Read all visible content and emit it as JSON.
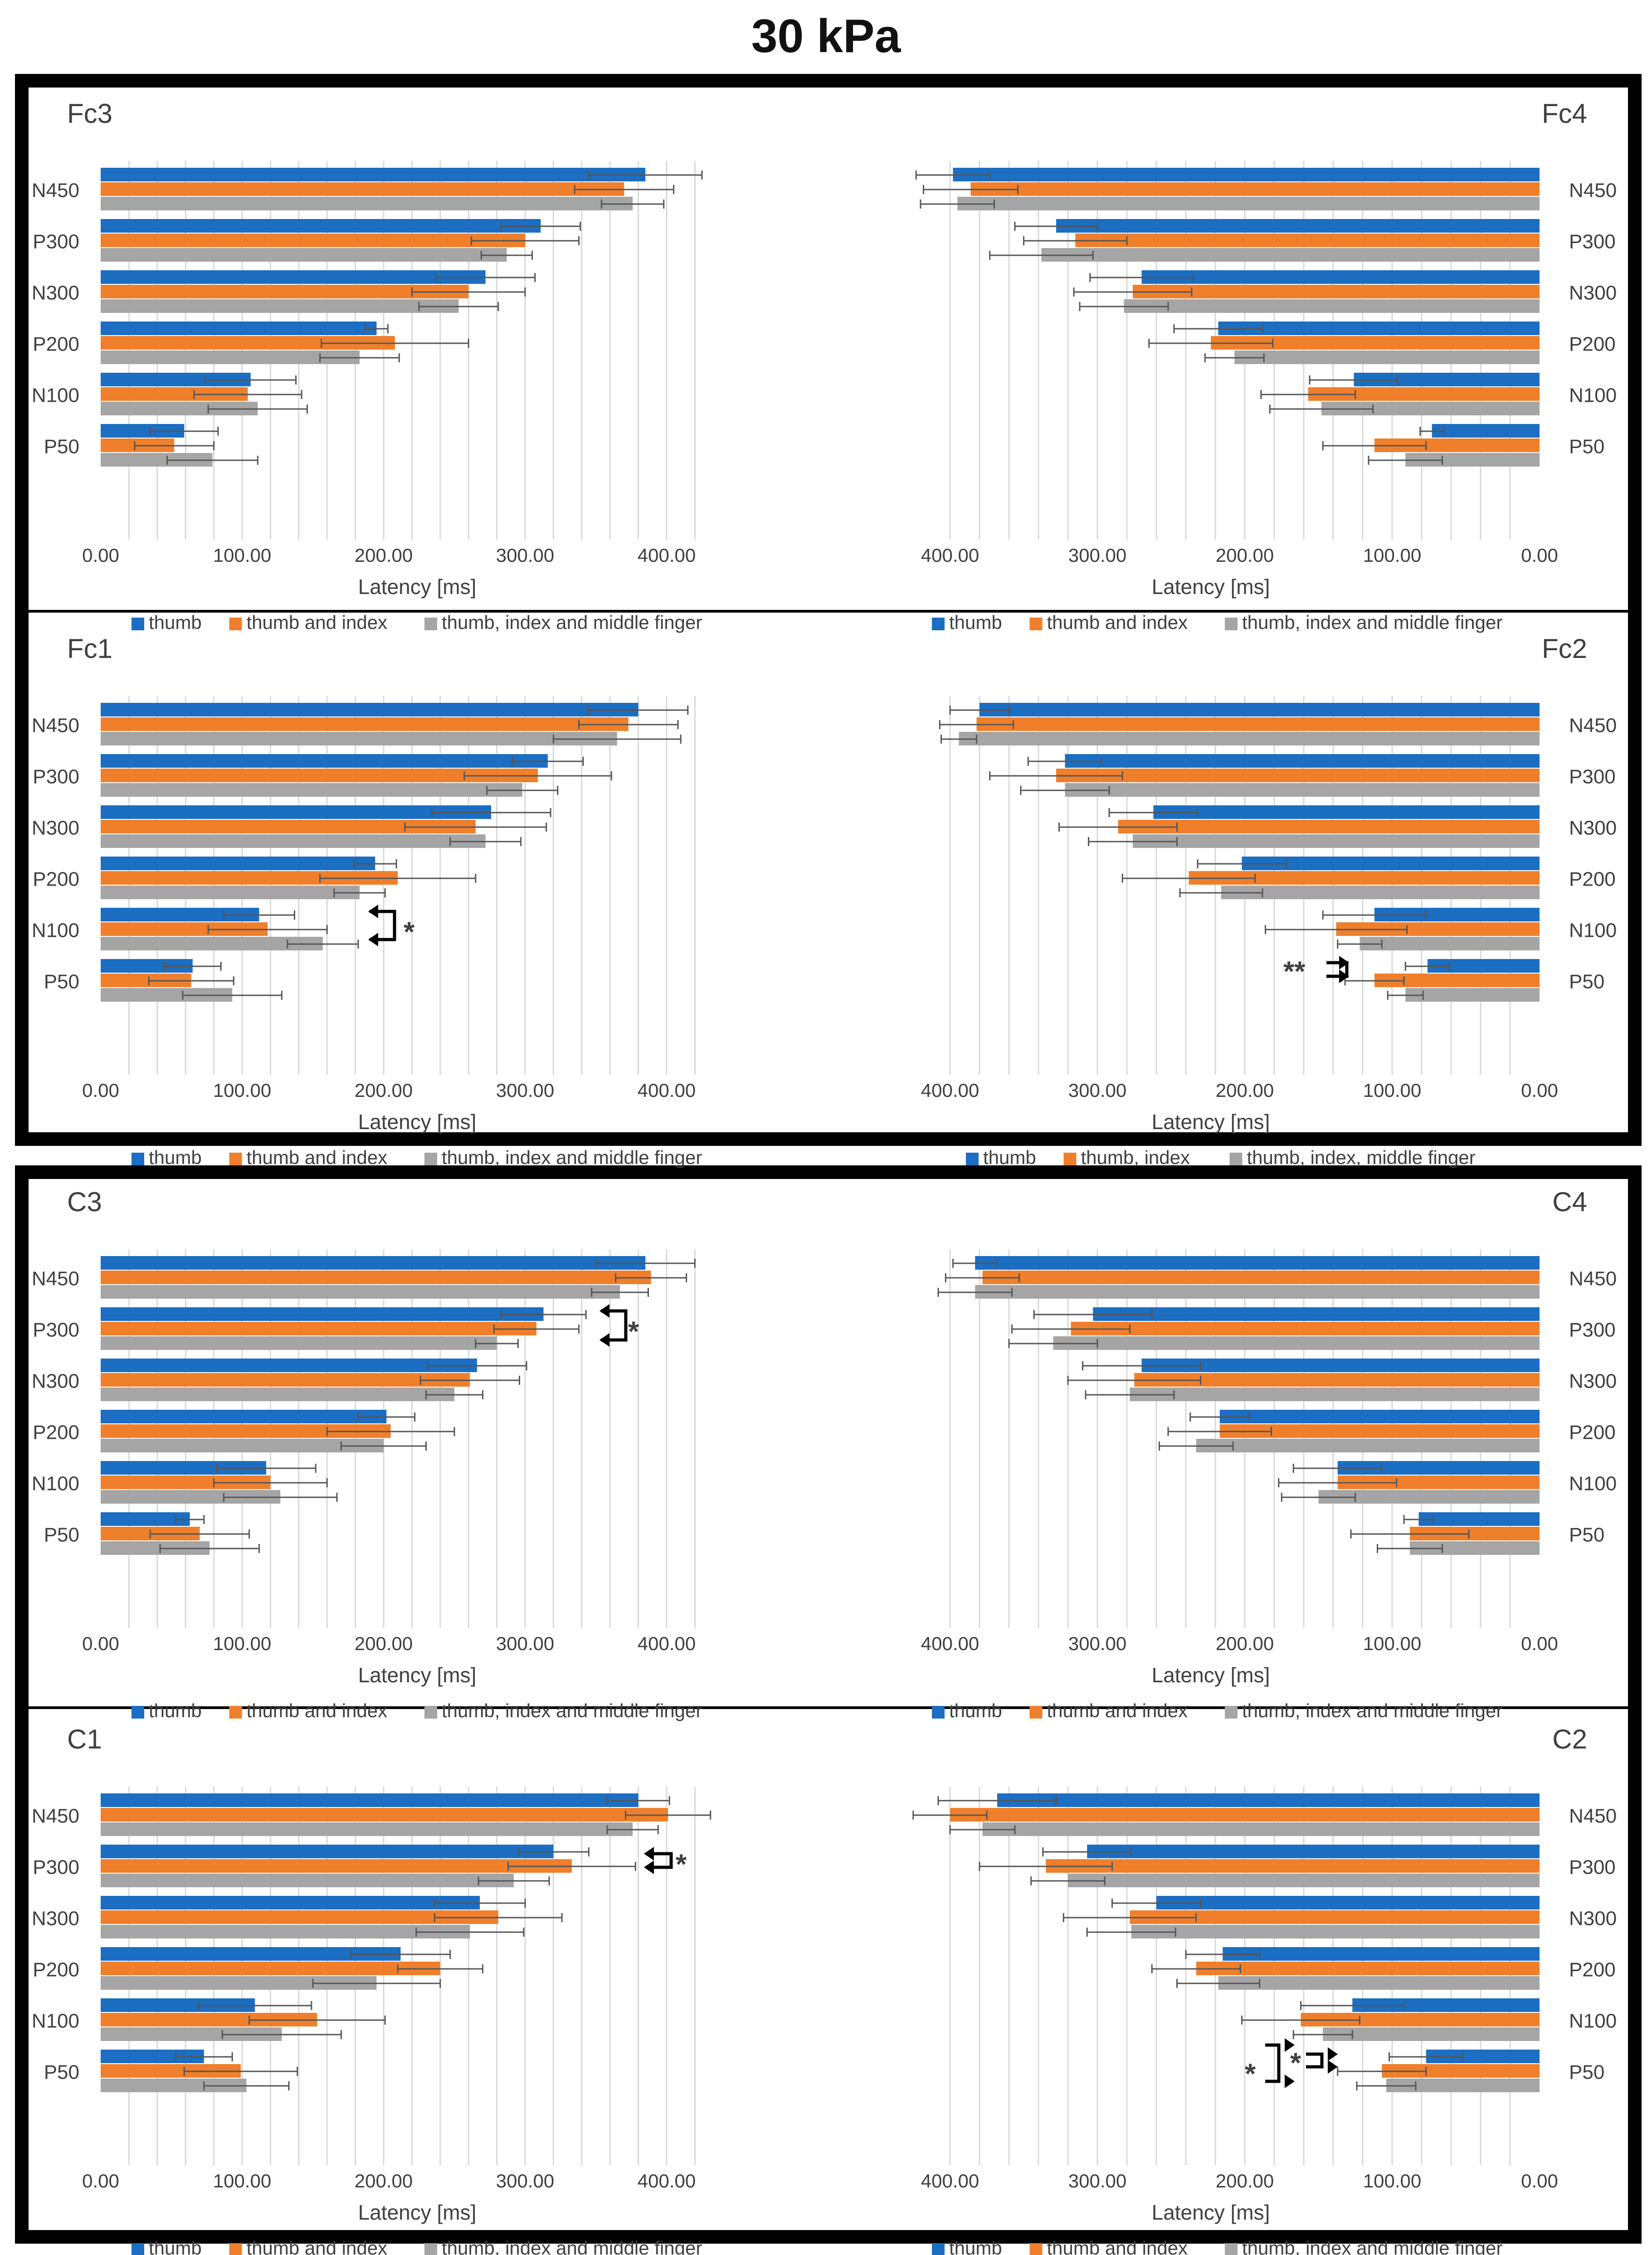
{
  "page_title": "30 kPa",
  "colors": {
    "thumb": "#1b6ec2",
    "thumb_index": "#f07f2c",
    "three_fingers": "#a5a5a5",
    "errorbar": "#555555",
    "grid": "#d9d9d9"
  },
  "chart_data": [
    {
      "id": "Fc3",
      "type": "bar",
      "orientation": "horizontal",
      "title": "Fc3",
      "direction": "left-to-right",
      "categories": [
        "N450",
        "P300",
        "N300",
        "P200",
        "N100",
        "P50"
      ],
      "xlabel": "Latency [ms]",
      "xlim": [
        0,
        400
      ],
      "xticks": [
        "0.00",
        "100.00",
        "200.00",
        "300.00",
        "400.00"
      ],
      "legend": [
        "thumb",
        "thumb and index",
        "thumb, index and middle finger"
      ],
      "series": [
        {
          "name": "thumb",
          "values": [
            385,
            311,
            272,
            195,
            106,
            59
          ],
          "errors": [
            40,
            28,
            35,
            8,
            32,
            24
          ]
        },
        {
          "name": "thumb and index",
          "values": [
            370,
            300,
            260,
            208,
            104,
            52
          ],
          "errors": [
            35,
            38,
            40,
            52,
            38,
            28
          ]
        },
        {
          "name": "thumb, index and middle finger",
          "values": [
            376,
            287,
            253,
            183,
            111,
            79
          ],
          "errors": [
            22,
            18,
            28,
            28,
            35,
            32
          ]
        }
      ],
      "annotations": []
    },
    {
      "id": "Fc4",
      "type": "bar",
      "orientation": "horizontal",
      "title": "Fc4",
      "direction": "right-to-left",
      "categories": [
        "N450",
        "P300",
        "N300",
        "P200",
        "N100",
        "P50"
      ],
      "xlabel": "Latency [ms]",
      "xlim": [
        0,
        400
      ],
      "xticks": [
        "400.00",
        "300.00",
        "200.00",
        "100.00",
        "0.00"
      ],
      "legend": [
        "thumb",
        "thumb and index",
        "thumb, index and middle finger"
      ],
      "series": [
        {
          "name": "thumb",
          "values": [
            398,
            328,
            270,
            218,
            126,
            73
          ],
          "errors": [
            25,
            28,
            35,
            30,
            30,
            8
          ]
        },
        {
          "name": "thumb and index",
          "values": [
            386,
            315,
            276,
            223,
            157,
            112
          ],
          "errors": [
            32,
            35,
            40,
            42,
            32,
            35
          ]
        },
        {
          "name": "thumb, index and middle finger",
          "values": [
            395,
            338,
            282,
            207,
            148,
            91
          ],
          "errors": [
            25,
            35,
            30,
            20,
            35,
            25
          ]
        }
      ],
      "annotations": []
    },
    {
      "id": "Fc1",
      "type": "bar",
      "orientation": "horizontal",
      "title": "Fc1",
      "direction": "left-to-right",
      "categories": [
        "N450",
        "P300",
        "N300",
        "P200",
        "N100",
        "P50"
      ],
      "xlabel": "Latency [ms]",
      "xlim": [
        0,
        400
      ],
      "xticks": [
        "0.00",
        "100.00",
        "200.00",
        "300.00",
        "400.00"
      ],
      "legend": [
        "thumb",
        "thumb and index",
        "thumb, index and middle finger"
      ],
      "series": [
        {
          "name": "thumb",
          "values": [
            380,
            316,
            276,
            194,
            112,
            65
          ],
          "errors": [
            35,
            25,
            42,
            15,
            25,
            20
          ]
        },
        {
          "name": "thumb and index",
          "values": [
            373,
            309,
            265,
            210,
            118,
            64
          ],
          "errors": [
            35,
            52,
            50,
            55,
            42,
            30
          ]
        },
        {
          "name": "thumb, index and middle finger",
          "values": [
            365,
            298,
            272,
            183,
            157,
            93
          ],
          "errors": [
            45,
            25,
            25,
            18,
            25,
            35
          ]
        }
      ],
      "annotations": [
        "*"
      ]
    },
    {
      "id": "Fc2",
      "type": "bar",
      "orientation": "horizontal",
      "title": "Fc2",
      "direction": "right-to-left",
      "categories": [
        "N450",
        "P300",
        "N300",
        "P200",
        "N100",
        "P50"
      ],
      "xlabel": "Latency [ms]",
      "xlim": [
        0,
        400
      ],
      "xticks": [
        "400.00",
        "300.00",
        "200.00",
        "100.00",
        "0.00"
      ],
      "legend": [
        "thumb",
        "thumb, index",
        "thumb, index, middle finger"
      ],
      "series": [
        {
          "name": "thumb",
          "values": [
            380,
            322,
            262,
            202,
            112,
            76
          ],
          "errors": [
            20,
            25,
            30,
            30,
            35,
            15
          ]
        },
        {
          "name": "thumb, index",
          "values": [
            382,
            328,
            286,
            238,
            138,
            112
          ],
          "errors": [
            25,
            45,
            40,
            45,
            48,
            20
          ]
        },
        {
          "name": "thumb, index, middle finger",
          "values": [
            394,
            322,
            276,
            216,
            122,
            91
          ],
          "errors": [
            12,
            30,
            30,
            28,
            15,
            12
          ]
        }
      ],
      "annotations": [
        "**"
      ]
    },
    {
      "id": "C3",
      "type": "bar",
      "orientation": "horizontal",
      "title": "C3",
      "direction": "left-to-right",
      "categories": [
        "N450",
        "P300",
        "N300",
        "P200",
        "N100",
        "P50"
      ],
      "xlabel": "Latency [ms]",
      "xlim": [
        0,
        400
      ],
      "xticks": [
        "0.00",
        "100.00",
        "200.00",
        "300.00",
        "400.00"
      ],
      "legend": [
        "thumb",
        "thumb and index",
        "thumb, index and middle finger"
      ],
      "series": [
        {
          "name": "thumb",
          "values": [
            385,
            313,
            266,
            202,
            117,
            63
          ],
          "errors": [
            35,
            30,
            35,
            20,
            35,
            10
          ]
        },
        {
          "name": "thumb and index",
          "values": [
            389,
            308,
            261,
            205,
            120,
            70
          ],
          "errors": [
            25,
            30,
            35,
            45,
            40,
            35
          ]
        },
        {
          "name": "thumb, index and middle finger",
          "values": [
            367,
            280,
            250,
            200,
            127,
            77
          ],
          "errors": [
            20,
            15,
            20,
            30,
            40,
            35
          ]
        }
      ],
      "annotations": [
        "*"
      ]
    },
    {
      "id": "C4",
      "type": "bar",
      "orientation": "horizontal",
      "title": "C4",
      "direction": "right-to-left",
      "categories": [
        "N450",
        "P300",
        "N300",
        "P200",
        "N100",
        "P50"
      ],
      "xlabel": "Latency [ms]",
      "xlim": [
        0,
        400
      ],
      "xticks": [
        "400.00",
        "300.00",
        "200.00",
        "100.00",
        "0.00"
      ],
      "legend": [
        "thumb",
        "thumb and index",
        "thumb, index and middle finger"
      ],
      "series": [
        {
          "name": "thumb",
          "values": [
            383,
            303,
            270,
            217,
            137,
            82
          ],
          "errors": [
            15,
            40,
            40,
            20,
            30,
            10
          ]
        },
        {
          "name": "thumb and index",
          "values": [
            378,
            318,
            275,
            217,
            137,
            88
          ],
          "errors": [
            25,
            40,
            45,
            35,
            40,
            40
          ]
        },
        {
          "name": "thumb, index and middle finger",
          "values": [
            383,
            330,
            278,
            233,
            150,
            88
          ],
          "errors": [
            25,
            30,
            30,
            25,
            25,
            22
          ]
        }
      ],
      "annotations": []
    },
    {
      "id": "C1",
      "type": "bar",
      "orientation": "horizontal",
      "title": "C1",
      "direction": "left-to-right",
      "categories": [
        "N450",
        "P300",
        "N300",
        "P200",
        "N100",
        "P50"
      ],
      "xlabel": "Latency [ms]",
      "xlim": [
        0,
        400
      ],
      "xticks": [
        "0.00",
        "100.00",
        "200.00",
        "300.00",
        "400.00"
      ],
      "legend": [
        "thumb",
        "thumb and index",
        "thumb, index and middle finger"
      ],
      "series": [
        {
          "name": "thumb",
          "values": [
            380,
            320,
            268,
            212,
            109,
            73
          ],
          "errors": [
            22,
            25,
            32,
            35,
            40,
            20
          ]
        },
        {
          "name": "thumb and index",
          "values": [
            401,
            333,
            281,
            240,
            153,
            99
          ],
          "errors": [
            30,
            45,
            45,
            30,
            48,
            40
          ]
        },
        {
          "name": "thumb, index and middle finger",
          "values": [
            376,
            292,
            261,
            195,
            128,
            103
          ],
          "errors": [
            18,
            25,
            38,
            45,
            42,
            30
          ]
        }
      ],
      "annotations": [
        "*"
      ]
    },
    {
      "id": "C2",
      "type": "bar",
      "orientation": "horizontal",
      "title": "C2",
      "direction": "right-to-left",
      "categories": [
        "N450",
        "P300",
        "N300",
        "P200",
        "N100",
        "P50"
      ],
      "xlabel": "Latency [ms]",
      "xlim": [
        0,
        400
      ],
      "xticks": [
        "400.00",
        "300.00",
        "200.00",
        "100.00",
        "0.00"
      ],
      "legend": [
        "thumb",
        "thumb and index",
        "thumb, index and middle finger"
      ],
      "series": [
        {
          "name": "thumb",
          "values": [
            368,
            307,
            260,
            215,
            127,
            77
          ],
          "errors": [
            40,
            30,
            30,
            25,
            35,
            25
          ]
        },
        {
          "name": "thumb and index",
          "values": [
            400,
            335,
            278,
            233,
            162,
            107
          ],
          "errors": [
            25,
            45,
            45,
            30,
            40,
            30
          ]
        },
        {
          "name": "thumb, index and middle finger",
          "values": [
            378,
            320,
            277,
            218,
            147,
            104
          ],
          "errors": [
            22,
            25,
            30,
            28,
            20,
            20
          ]
        }
      ],
      "annotations": [
        "*",
        "*"
      ]
    }
  ]
}
